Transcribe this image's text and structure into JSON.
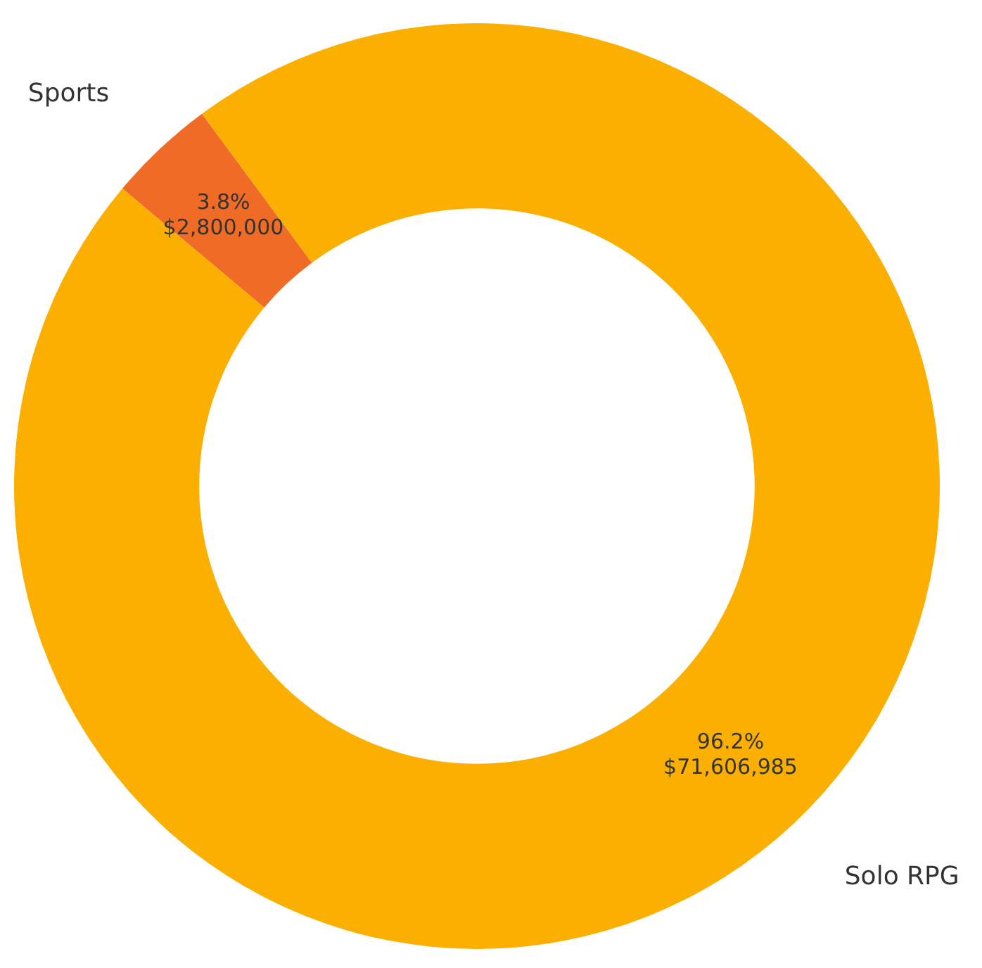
{
  "chart_data": {
    "type": "donut",
    "categories": [
      "Sports",
      "Solo RPG"
    ],
    "values": [
      2800000,
      71606985
    ],
    "colors": [
      "#f06b25",
      "#fbaf00"
    ],
    "value_labels": [
      "3.8%\n$2,800,000",
      "96.2%\n$71,606,985"
    ],
    "legend": false
  }
}
